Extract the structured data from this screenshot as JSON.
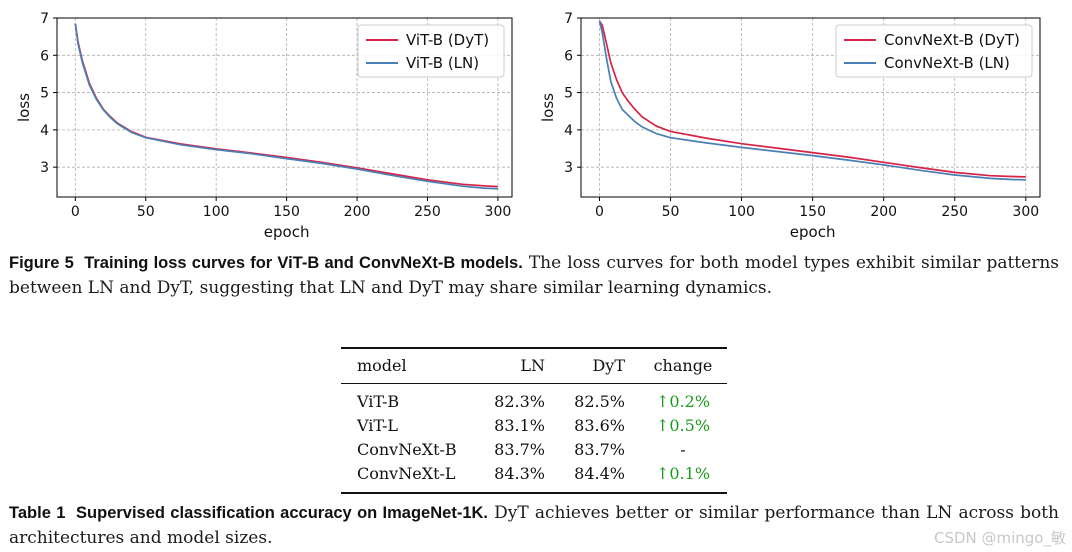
{
  "chart_data": [
    {
      "type": "line",
      "xlabel": "epoch",
      "ylabel": "loss",
      "xlim": [
        -13,
        310
      ],
      "ylim": [
        2.2,
        7.0
      ],
      "xticks": [
        0,
        50,
        100,
        150,
        200,
        250,
        300
      ],
      "yticks": [
        3,
        4,
        5,
        6,
        7
      ],
      "grid": true,
      "legend": "top-right",
      "series": [
        {
          "name": "ViT-B (DyT)",
          "color": "#d62347",
          "x": [
            0,
            2,
            5,
            10,
            15,
            20,
            25,
            30,
            40,
            50,
            75,
            100,
            125,
            150,
            175,
            200,
            225,
            250,
            275,
            290,
            300
          ],
          "y": [
            6.85,
            6.35,
            5.85,
            5.25,
            4.85,
            4.55,
            4.35,
            4.18,
            3.95,
            3.8,
            3.62,
            3.49,
            3.38,
            3.26,
            3.13,
            2.98,
            2.82,
            2.66,
            2.54,
            2.5,
            2.48
          ]
        },
        {
          "name": "ViT-B (LN)",
          "color": "#4a7fb5",
          "x": [
            0,
            2,
            5,
            10,
            15,
            20,
            25,
            30,
            40,
            50,
            75,
            100,
            125,
            150,
            175,
            200,
            225,
            250,
            275,
            290,
            300
          ],
          "y": [
            6.85,
            6.3,
            5.8,
            5.2,
            4.82,
            4.53,
            4.33,
            4.16,
            3.93,
            3.79,
            3.6,
            3.47,
            3.36,
            3.23,
            3.1,
            2.95,
            2.78,
            2.62,
            2.49,
            2.44,
            2.42
          ]
        }
      ]
    },
    {
      "type": "line",
      "xlabel": "epoch",
      "ylabel": "loss",
      "xlim": [
        -13,
        310
      ],
      "ylim": [
        2.2,
        7.0
      ],
      "xticks": [
        0,
        50,
        100,
        150,
        200,
        250,
        300
      ],
      "yticks": [
        3,
        4,
        5,
        6,
        7
      ],
      "grid": true,
      "legend": "top-right",
      "series": [
        {
          "name": "ConvNeXt-B (DyT)",
          "color": "#d62347",
          "x": [
            0,
            2,
            5,
            8,
            12,
            16,
            20,
            25,
            30,
            40,
            50,
            75,
            100,
            125,
            150,
            175,
            200,
            225,
            250,
            275,
            290,
            300
          ],
          "y": [
            6.92,
            6.8,
            6.3,
            5.8,
            5.35,
            5.0,
            4.78,
            4.55,
            4.35,
            4.1,
            3.96,
            3.78,
            3.63,
            3.51,
            3.39,
            3.27,
            3.13,
            2.99,
            2.86,
            2.77,
            2.75,
            2.74
          ]
        },
        {
          "name": "ConvNeXt-B (LN)",
          "color": "#4a7fb5",
          "x": [
            0,
            2,
            5,
            8,
            12,
            16,
            20,
            25,
            30,
            40,
            50,
            75,
            100,
            125,
            150,
            175,
            200,
            225,
            250,
            275,
            290,
            300
          ],
          "y": [
            6.92,
            6.6,
            5.9,
            5.3,
            4.85,
            4.55,
            4.4,
            4.22,
            4.08,
            3.9,
            3.79,
            3.65,
            3.53,
            3.42,
            3.31,
            3.19,
            3.06,
            2.92,
            2.79,
            2.7,
            2.67,
            2.66
          ]
        }
      ]
    }
  ],
  "figure": {
    "label": "Figure 5",
    "title": "Training loss curves for ViT-B and ConvNeXt-B models.",
    "text": "The loss curves for both model types exhibit similar patterns between LN and DyT, suggesting that LN and DyT may share similar learning dynamics."
  },
  "table": {
    "headers": [
      "model",
      "LN",
      "DyT",
      "change"
    ],
    "rows": [
      [
        "ViT-B",
        "82.3%",
        "82.5%",
        "↑0.2%"
      ],
      [
        "ViT-L",
        "83.1%",
        "83.6%",
        "↑0.5%"
      ],
      [
        "ConvNeXt-B",
        "83.7%",
        "83.7%",
        "-"
      ],
      [
        "ConvNeXt-L",
        "84.3%",
        "84.4%",
        "↑0.1%"
      ]
    ],
    "positive_color": "#1a9a1a"
  },
  "table_caption": {
    "label": "Table 1",
    "title": "Supervised classification accuracy on ImageNet-1K.",
    "text": "DyT achieves better or similar performance than LN across both architectures and model sizes."
  },
  "watermark": "CSDN @mingo_敏"
}
